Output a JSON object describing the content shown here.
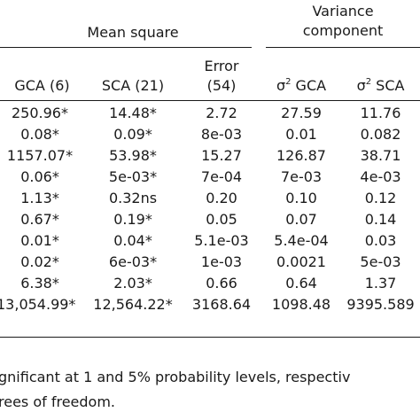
{
  "header": {
    "group_mean_square": "Mean square",
    "group_variance_line1": "Variance",
    "group_variance_line2": "component",
    "col_gca": "GCA (6)",
    "col_sca": "SCA (21)",
    "col_error_line1": "Error",
    "col_error_line2": "(54)",
    "col_sigma_gca_prefix": "σ",
    "col_sigma_gca_sup": "2",
    "col_sigma_gca_suffix": " GCA",
    "col_sigma_sca_prefix": "σ",
    "col_sigma_sca_sup": "2",
    "col_sigma_sca_suffix": " SCA"
  },
  "rows": [
    {
      "gca": "250.96*",
      "sca": "14.48*",
      "error": "2.72",
      "sg": "27.59",
      "ss": "11.76"
    },
    {
      "gca": "0.08*",
      "sca": "0.09*",
      "error": "8e-03",
      "sg": "0.01",
      "ss": "0.082"
    },
    {
      "gca": "1157.07*",
      "sca": "53.98*",
      "error": "15.27",
      "sg": "126.87",
      "ss": "38.71"
    },
    {
      "gca": "0.06*",
      "sca": "5e-03*",
      "error": "7e-04",
      "sg": "7e-03",
      "ss": "4e-03"
    },
    {
      "gca": "1.13*",
      "sca": "0.32ns",
      "error": "0.20",
      "sg": "0.10",
      "ss": "0.12"
    },
    {
      "gca": "0.67*",
      "sca": "0.19*",
      "error": "0.05",
      "sg": "0.07",
      "ss": "0.14"
    },
    {
      "gca": "0.01*",
      "sca": "0.04*",
      "error": "5.1e-03",
      "sg": "5.4e-04",
      "ss": "0.03"
    },
    {
      "gca": "0.02*",
      "sca": "6e-03*",
      "error": "1e-03",
      "sg": "0.0021",
      "ss": "5e-03"
    },
    {
      "gca": "6.38*",
      "sca": "2.03*",
      "error": "0.66",
      "sg": "0.64",
      "ss": "1.37"
    },
    {
      "gca": "13,054.99*",
      "sca": "12,564.22*",
      "error": "3168.64",
      "sg": "1098.48",
      "ss": "9395.589"
    }
  ],
  "footnote": {
    "line1": "gnificant at 1 and 5% probability levels, respectiv",
    "line2": "rees of freedom."
  }
}
